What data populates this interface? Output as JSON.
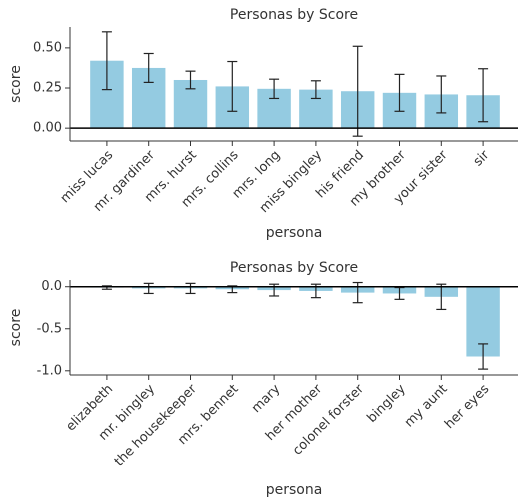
{
  "chart_data": [
    {
      "type": "bar",
      "title": "Personas by Score",
      "x_label": "persona",
      "y_label": "score",
      "categories": [
        "miss lucas",
        "mr. gardiner",
        "mrs. hurst",
        "mrs. collins",
        "mrs. long",
        "miss bingley",
        "his friend",
        "my brother",
        "your sister",
        "sir"
      ],
      "values": [
        0.42,
        0.375,
        0.3,
        0.26,
        0.245,
        0.24,
        0.23,
        0.22,
        0.21,
        0.205
      ],
      "errors": [
        0.18,
        0.09,
        0.055,
        0.155,
        0.06,
        0.055,
        0.28,
        0.115,
        0.115,
        0.165
      ],
      "color": "#94cbe1",
      "ylim": [
        -0.08,
        0.63
      ],
      "yticks": [
        {
          "value": 0,
          "label": "0.00"
        },
        0.25,
        {
          "value": 0.5,
          "label": "0.50"
        }
      ]
    },
    {
      "type": "bar",
      "title": "Personas by Score",
      "x_label": "persona",
      "y_label": "score",
      "categories": [
        "elizabeth",
        "mr. bingley",
        "the housekeeper",
        "mrs. bennet",
        "mary",
        "her mother",
        "colonel forster",
        "bingley",
        "my aunt",
        "her eyes"
      ],
      "values": [
        -0.01,
        -0.02,
        -0.02,
        -0.03,
        -0.04,
        -0.05,
        -0.07,
        -0.08,
        -0.12,
        -0.83
      ],
      "errors": [
        0.02,
        0.06,
        0.06,
        0.04,
        0.07,
        0.08,
        0.12,
        0.07,
        0.15,
        0.15
      ],
      "color": "#94cbe1",
      "ylim": [
        -1.05,
        0.08
      ],
      "yticks": [
        {
          "value": 0,
          "label": "0.0"
        },
        -0.5,
        {
          "value": -1,
          "label": "-1.0"
        }
      ]
    }
  ]
}
